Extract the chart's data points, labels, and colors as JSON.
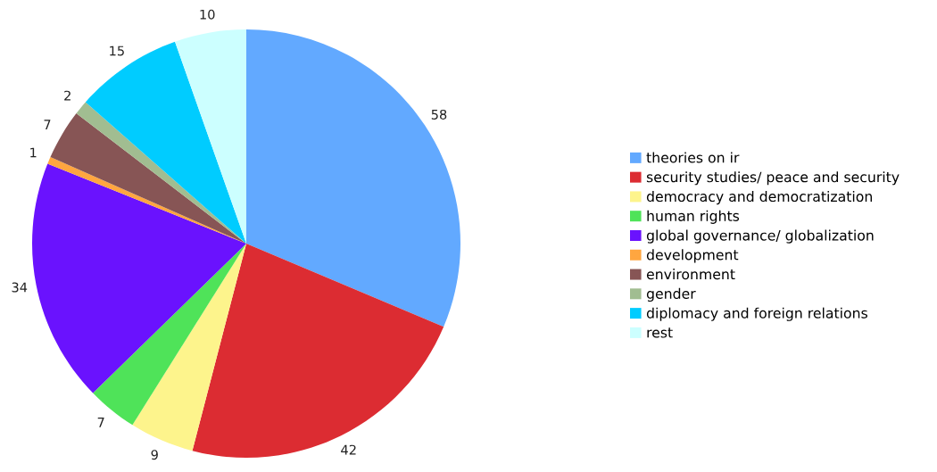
{
  "chart_data": {
    "type": "pie",
    "categories": [
      "theories on ir",
      "security studies/ peace and security",
      "democracy and democratization",
      "human rights",
      "global governance/ globalization",
      "development",
      "environment",
      "gender",
      "diplomacy and foreign relations",
      "rest"
    ],
    "values": [
      58,
      42,
      9,
      7,
      34,
      1,
      7,
      2,
      15,
      10
    ],
    "colors": [
      "#62a9ff",
      "#dc2c32",
      "#fdf48c",
      "#4fe359",
      "#6a12fe",
      "#ffa640",
      "#875555",
      "#a1bd91",
      "#00ccff",
      "#ccffff"
    ],
    "data_labels": true,
    "legend": "right"
  }
}
